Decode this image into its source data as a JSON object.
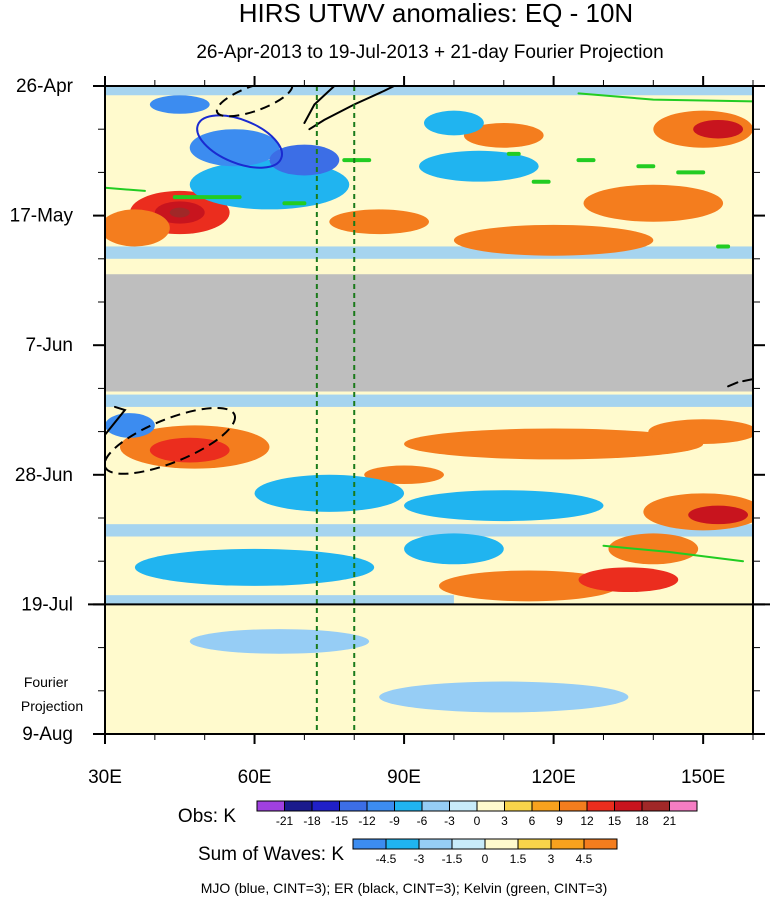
{
  "chart_data": {
    "type": "heatmap",
    "title": "HIRS UTWV anomalies: EQ - 10N",
    "subtitle": "26-Apr-2013 to 19-Jul-2013 + 21-day Fourier Projection",
    "x_ticks": [
      {
        "value": 30,
        "label": "30E"
      },
      {
        "value": 60,
        "label": "60E"
      },
      {
        "value": 90,
        "label": "90E"
      },
      {
        "value": 120,
        "label": "120E"
      },
      {
        "value": 150,
        "label": "150E"
      }
    ],
    "xlim": [
      30,
      160
    ],
    "y_ticks": [
      {
        "day": 0,
        "label": "26-Apr"
      },
      {
        "day": 21,
        "label": "17-May"
      },
      {
        "day": 42,
        "label": "7-Jun"
      },
      {
        "day": 63,
        "label": "28-Jun"
      },
      {
        "day": 84,
        "label": "19-Jul"
      },
      {
        "day": 105,
        "label": "9-Aug"
      }
    ],
    "ylim_days": [
      0,
      105
    ],
    "observation_end_day": 84,
    "missing_data_days": [
      30.5,
      49.5
    ],
    "projection_label": [
      "Fourier",
      "Projection"
    ],
    "reference_longitudes": [
      72.5,
      80
    ],
    "obs_legend": {
      "label": "Obs: K",
      "levels": [
        "-21",
        "-18",
        "-15",
        "-12",
        "-9",
        "-6",
        "-3",
        "0",
        "3",
        "6",
        "9",
        "12",
        "15",
        "18",
        "21"
      ],
      "colors": [
        "#a040e0",
        "#1a1a8c",
        "#2020c8",
        "#3c6ee6",
        "#3c8cf0",
        "#20b4f0",
        "#96cdf5",
        "#c8ebfa",
        "#fffacd",
        "#f8d44a",
        "#f8a21e",
        "#f47d1e",
        "#eb2d1e",
        "#c8141e",
        "#a02828",
        "#f57dc3"
      ]
    },
    "waves_legend": {
      "label": "Sum of Waves: K",
      "levels": [
        "-4.5",
        "-3",
        "-1.5",
        "0",
        "1.5",
        "3",
        "4.5"
      ],
      "colors": [
        "#3c8cf0",
        "#20b4f0",
        "#96cdf5",
        "#c8ebfa",
        "#fffacd",
        "#f8d44a",
        "#f8a21e",
        "#f47d1e"
      ]
    },
    "footer": "MJO (blue, CINT=3); ER (black, CINT=3); Kelvin (green, CINT=3)",
    "colors": {
      "missing": "#bebebe",
      "mjo": "#1a2ad0",
      "er": "#000000",
      "kelvin": "#22cc22",
      "reference_lines": "#1a7a1a",
      "background": "#fffacd"
    },
    "anomaly_features": [
      {
        "lon": 45,
        "day": 20.5,
        "rlon": 10,
        "rday": 3.5,
        "level": 5
      },
      {
        "lon": 45,
        "day": 20.5,
        "rlon": 5,
        "rday": 1.8,
        "level": 6
      },
      {
        "lon": 45,
        "day": 20.5,
        "rlon": 2,
        "rday": 0.8,
        "level": 7
      },
      {
        "lon": 36,
        "day": 23,
        "rlon": 7,
        "rday": 3,
        "level": 4
      },
      {
        "lon": 150,
        "day": 7,
        "rlon": 10,
        "rday": 3,
        "level": 4
      },
      {
        "lon": 153,
        "day": 7,
        "rlon": 5,
        "rday": 1.5,
        "level": 6
      },
      {
        "lon": 110,
        "day": 8,
        "rlon": 8,
        "rday": 2,
        "level": 4
      },
      {
        "lon": 140,
        "day": 19,
        "rlon": 14,
        "rday": 3,
        "level": 4
      },
      {
        "lon": 120,
        "day": 25,
        "rlon": 20,
        "rday": 2.5,
        "level": 4
      },
      {
        "lon": 85,
        "day": 22,
        "rlon": 10,
        "rday": 2,
        "level": 4
      },
      {
        "lon": 63,
        "day": 16,
        "rlon": 16,
        "rday": 4,
        "level": -2
      },
      {
        "lon": 56,
        "day": 10,
        "rlon": 9,
        "rday": 3,
        "level": -3
      },
      {
        "lon": 70,
        "day": 12,
        "rlon": 7,
        "rday": 2.5,
        "level": -4
      },
      {
        "lon": 45,
        "day": 3,
        "rlon": 6,
        "rday": 1.5,
        "level": -3
      },
      {
        "lon": 105,
        "day": 13,
        "rlon": 12,
        "rday": 2.5,
        "level": -2
      },
      {
        "lon": 100,
        "day": 6,
        "rlon": 6,
        "rday": 2,
        "level": -2
      },
      {
        "lon": 48,
        "day": 58.5,
        "rlon": 15,
        "rday": 3.5,
        "level": 4
      },
      {
        "lon": 47,
        "day": 59,
        "rlon": 8,
        "rday": 2,
        "level": 5
      },
      {
        "lon": 35,
        "day": 55,
        "rlon": 5,
        "rday": 2,
        "level": -3
      },
      {
        "lon": 120,
        "day": 58,
        "rlon": 30,
        "rday": 2.5,
        "level": 4
      },
      {
        "lon": 150,
        "day": 56,
        "rlon": 11,
        "rday": 2,
        "level": 4
      },
      {
        "lon": 150,
        "day": 69,
        "rlon": 12,
        "rday": 3,
        "level": 4
      },
      {
        "lon": 153,
        "day": 69.5,
        "rlon": 6,
        "rday": 1.5,
        "level": 6
      },
      {
        "lon": 115,
        "day": 81,
        "rlon": 18,
        "rday": 2.5,
        "level": 4
      },
      {
        "lon": 135,
        "day": 80,
        "rlon": 10,
        "rday": 2,
        "level": 5
      },
      {
        "lon": 140,
        "day": 75,
        "rlon": 9,
        "rday": 2.5,
        "level": 4
      },
      {
        "lon": 90,
        "day": 63,
        "rlon": 8,
        "rday": 1.5,
        "level": 4
      },
      {
        "lon": 60,
        "day": 78,
        "rlon": 24,
        "rday": 3,
        "level": -2
      },
      {
        "lon": 110,
        "day": 68,
        "rlon": 20,
        "rday": 2.5,
        "level": -2
      },
      {
        "lon": 75,
        "day": 66,
        "rlon": 15,
        "rday": 3,
        "level": -2
      },
      {
        "lon": 100,
        "day": 75,
        "rlon": 10,
        "rday": 2.5,
        "level": -2
      },
      {
        "lon": 65,
        "day": 90,
        "rlon": 18,
        "rday": 2,
        "level": -1
      },
      {
        "lon": 110,
        "day": 99,
        "rlon": 25,
        "rday": 2.5,
        "level": -1
      }
    ],
    "anomaly_bands": [
      {
        "lon1": 30,
        "lon2": 160,
        "day1": 0,
        "day2": 1.5,
        "level": -1
      },
      {
        "lon1": 30,
        "lon2": 160,
        "day1": 26,
        "day2": 28,
        "level": -1
      },
      {
        "lon1": 30,
        "lon2": 160,
        "day1": 50,
        "day2": 52,
        "level": -1
      },
      {
        "lon1": 30,
        "lon2": 160,
        "day1": 71,
        "day2": 73,
        "level": -1
      },
      {
        "lon1": 30,
        "lon2": 100,
        "day1": 82.5,
        "day2": 84,
        "level": -1
      }
    ],
    "contours": [
      {
        "wave": "MJO",
        "style": "solid",
        "lon": 57,
        "day": 9,
        "rlon": 9,
        "rday": 3.5,
        "angle": 22
      },
      {
        "wave": "ER",
        "style": "dashed",
        "lon": 43,
        "day": 57.5,
        "rlon": 14,
        "rday": 3.5,
        "angle": -22
      },
      {
        "wave": "ER",
        "style": "dashed",
        "lon": 60,
        "day": 2,
        "rlon": 8,
        "rday": 2,
        "angle": -20
      }
    ],
    "contour_paths": [
      {
        "wave": "ER",
        "style": "solid",
        "points": [
          [
            71,
            7
          ],
          [
            74,
            5.5
          ],
          [
            80,
            3
          ],
          [
            86,
            0.8
          ],
          [
            88,
            0
          ]
        ]
      },
      {
        "wave": "ER",
        "style": "solid",
        "points": [
          [
            76,
            0
          ],
          [
            72,
            3
          ],
          [
            70,
            6
          ]
        ]
      },
      {
        "wave": "ER",
        "style": "solid",
        "points": [
          [
            30,
            56.5
          ],
          [
            34,
            52.5
          ],
          [
            32,
            52
          ]
        ]
      },
      {
        "wave": "ER",
        "style": "dashed",
        "points": [
          [
            160,
            47.5
          ],
          [
            157,
            48
          ],
          [
            154,
            49
          ]
        ]
      },
      {
        "wave": "Kelvin",
        "style": "solid",
        "points": [
          [
            125,
            1.2
          ],
          [
            140,
            2.2
          ],
          [
            160,
            2.5
          ]
        ]
      },
      {
        "wave": "Kelvin",
        "style": "solid",
        "points": [
          [
            30,
            16.5
          ],
          [
            38,
            17
          ]
        ]
      },
      {
        "wave": "Kelvin",
        "style": "solid",
        "points": [
          [
            130,
            74.5
          ],
          [
            143,
            75.5
          ],
          [
            150,
            76.2
          ],
          [
            158,
            77
          ]
        ]
      },
      {
        "wave": "Kelvin",
        "style": "short",
        "points": [
          [
            78,
            12
          ],
          [
            83,
            12
          ]
        ]
      },
      {
        "wave": "Kelvin",
        "style": "short",
        "points": [
          [
            111,
            11
          ],
          [
            113,
            11
          ]
        ]
      },
      {
        "wave": "Kelvin",
        "style": "short",
        "points": [
          [
            125,
            12
          ],
          [
            128,
            12
          ]
        ]
      },
      {
        "wave": "Kelvin",
        "style": "short",
        "points": [
          [
            137,
            13
          ],
          [
            140,
            13
          ]
        ]
      },
      {
        "wave": "Kelvin",
        "style": "short",
        "points": [
          [
            145,
            14
          ],
          [
            150,
            14
          ]
        ]
      },
      {
        "wave": "Kelvin",
        "style": "short",
        "points": [
          [
            116,
            15.5
          ],
          [
            119,
            15.5
          ]
        ]
      },
      {
        "wave": "Kelvin",
        "style": "short",
        "points": [
          [
            44,
            18
          ],
          [
            57,
            18
          ]
        ]
      },
      {
        "wave": "Kelvin",
        "style": "short",
        "points": [
          [
            66,
            19
          ],
          [
            70,
            19
          ]
        ]
      },
      {
        "wave": "Kelvin",
        "style": "short",
        "points": [
          [
            153,
            26
          ],
          [
            155,
            26
          ]
        ]
      }
    ]
  }
}
